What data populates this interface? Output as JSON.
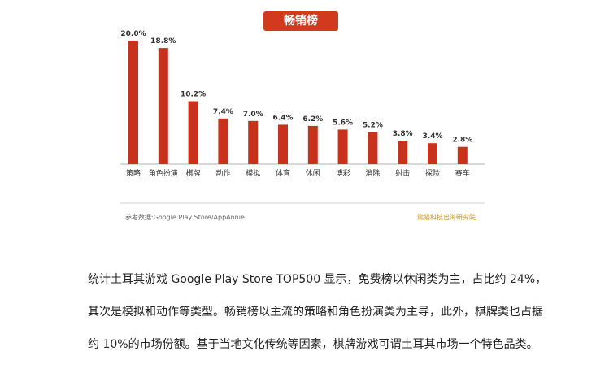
{
  "chart_data": {
    "type": "bar",
    "title": "畅销榜",
    "categories": [
      "策略",
      "角色扮演",
      "棋牌",
      "动作",
      "模拟",
      "体育",
      "休闲",
      "博彩",
      "消除",
      "射击",
      "探险",
      "赛车"
    ],
    "values": [
      20.0,
      18.8,
      10.2,
      7.4,
      7.0,
      6.4,
      6.2,
      5.6,
      5.2,
      3.8,
      3.4,
      2.8
    ],
    "value_labels": [
      "20.0%",
      "18.8%",
      "10.2%",
      "7.4%",
      "7.0%",
      "6.4%",
      "6.2%",
      "5.6%",
      "5.2%",
      "3.8%",
      "3.4%",
      "2.8%"
    ],
    "unit": "%",
    "grid": false,
    "legend": "none",
    "bar_color": "#c8311b"
  },
  "source": {
    "left": "参考数据:Google Play Store/AppAnnie",
    "right": "熊猫科技出海研究院"
  },
  "paragraph": {
    "line1": "统计土耳其游戏 Google Play Store TOP500 显示，免费榜以休闲类为主，占比约 24%，",
    "line2": "其次是模拟和动作等类型。畅销榜以主流的策略和角色扮演类为主导，此外，棋牌类也占据",
    "line3": "约 10%的市场份额。基于当地文化传统等因素，棋牌游戏可谓土耳其市场一个特色品类。"
  }
}
